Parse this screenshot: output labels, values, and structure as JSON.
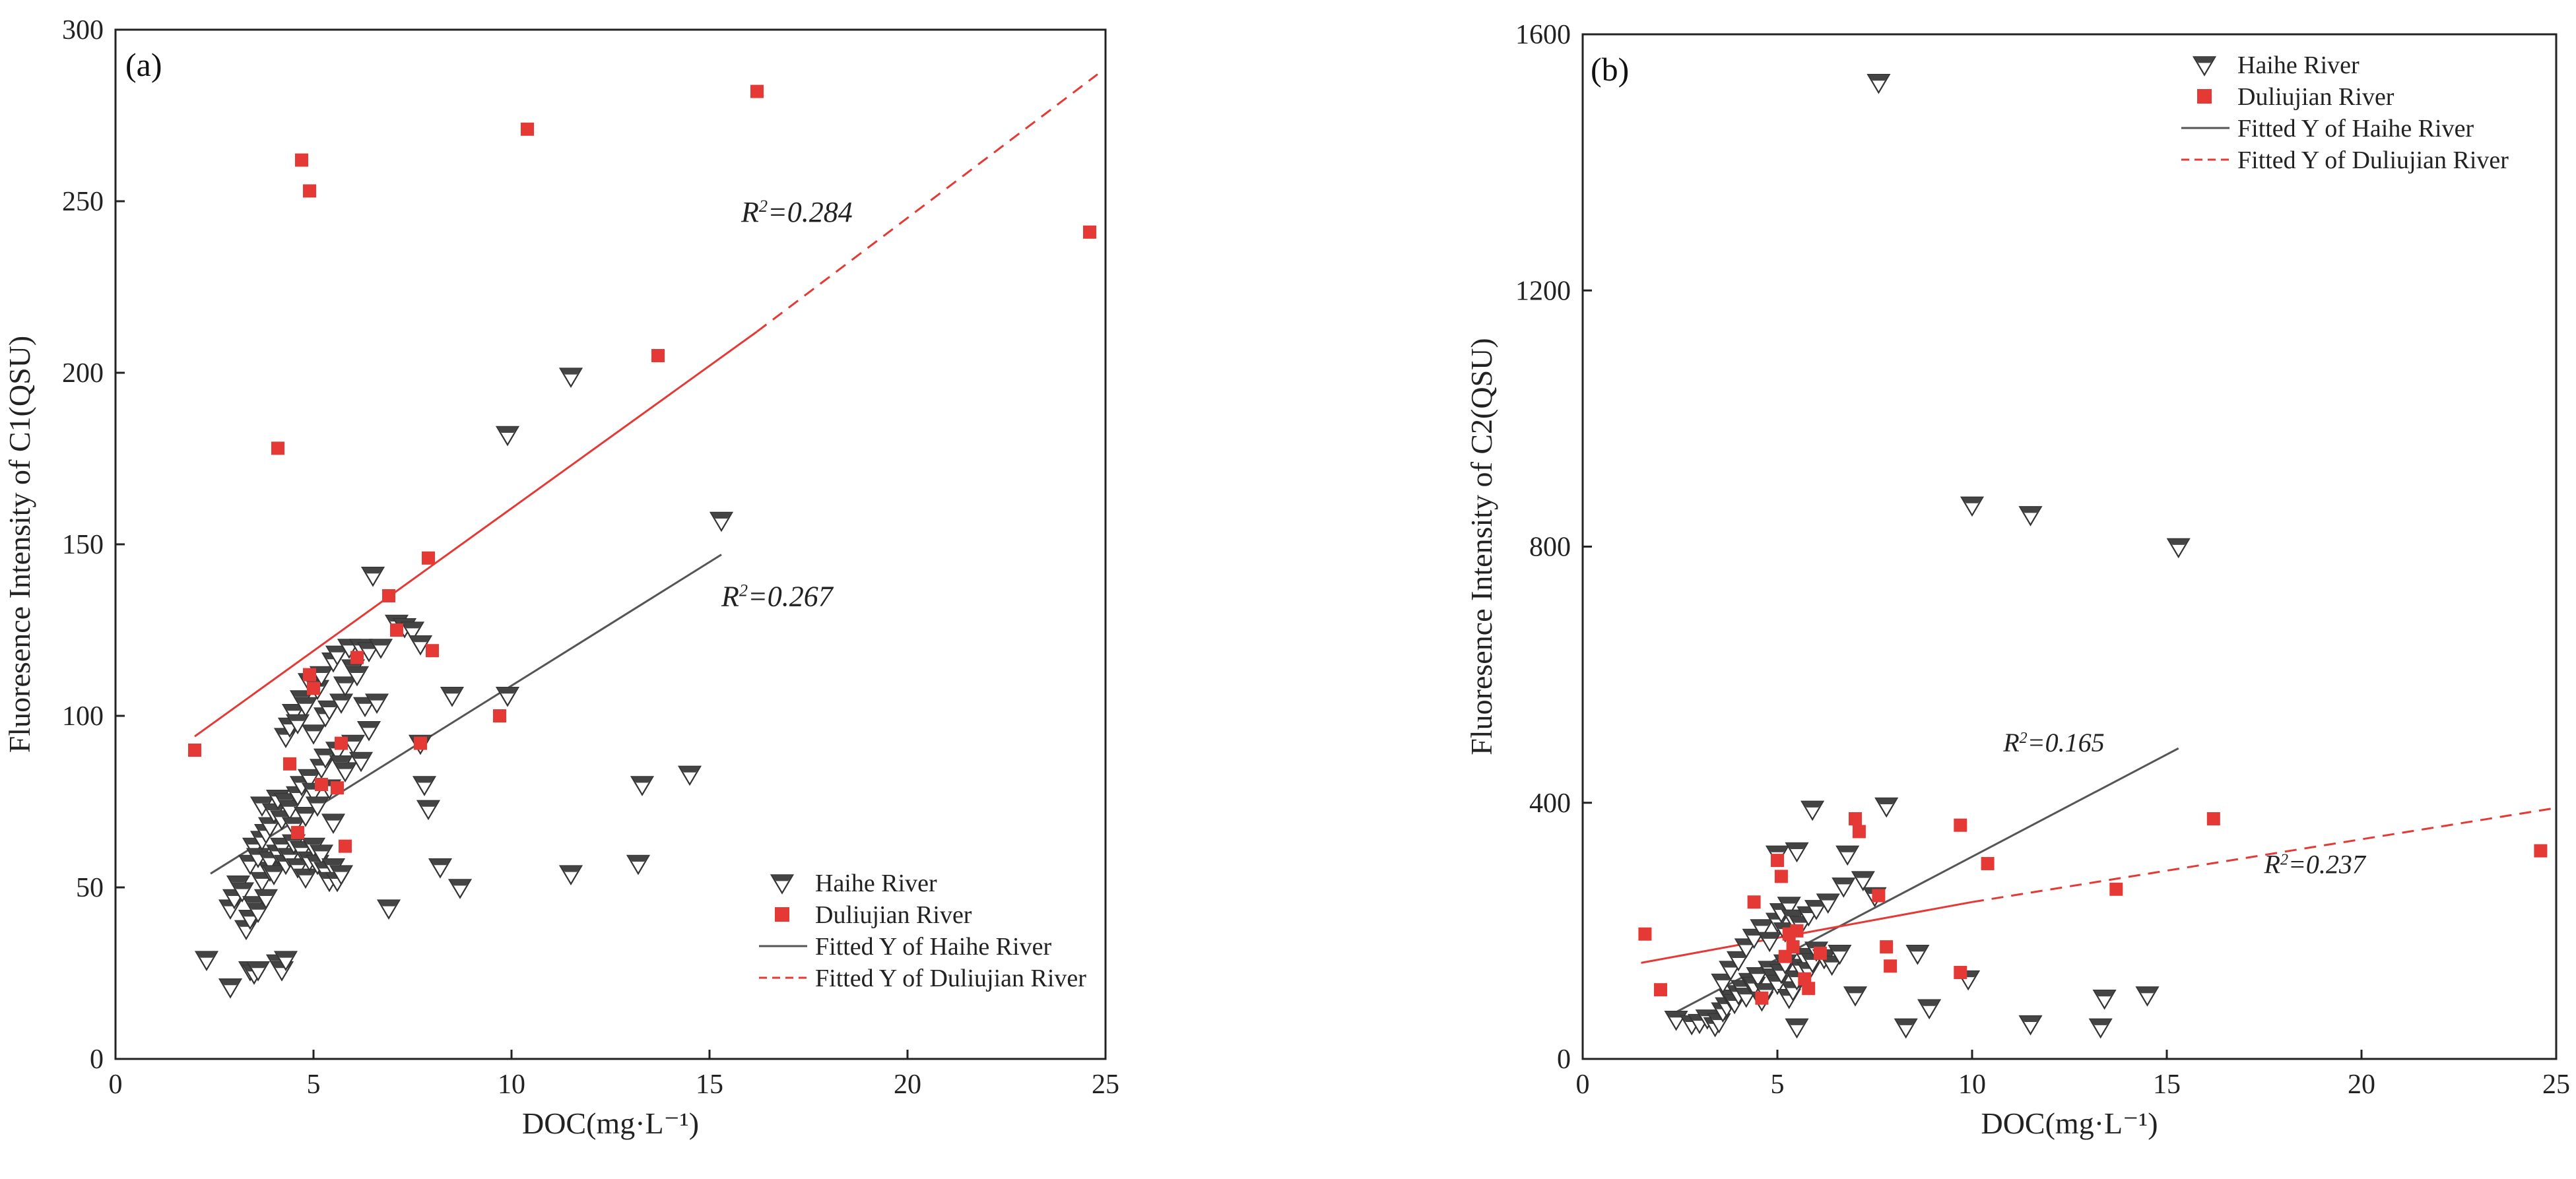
{
  "chart_data": [
    {
      "type": "scatter",
      "panel_label": "(a)",
      "xlabel": "DOC(mg·L⁻¹)",
      "ylabel": "Fluoresence Intensity of C1(QSU)",
      "xlim": [
        0,
        25
      ],
      "ylim": [
        0,
        300
      ],
      "xticks": [
        0,
        5,
        10,
        15,
        20,
        25
      ],
      "yticks": [
        0,
        50,
        100,
        150,
        200,
        250,
        300
      ],
      "grid": false,
      "legend_position": "bottom-right",
      "legend": {
        "haihe": "Haihe River",
        "duliujian": "Duliujian River",
        "fit_haihe": "Fitted Y of Haihe River",
        "fit_duliujian": "Fitted Y of Duliujian River"
      },
      "series": [
        {
          "name": "Haihe River",
          "marker": "triangle-down",
          "color": "#555555",
          "points": [
            [
              2.3,
              29
            ],
            [
              2.9,
              21
            ],
            [
              3.4,
              26
            ],
            [
              3.5,
              25
            ],
            [
              3.6,
              26
            ],
            [
              4.1,
              28
            ],
            [
              4.2,
              26
            ],
            [
              4.3,
              29
            ],
            [
              2.9,
              44
            ],
            [
              3.0,
              47
            ],
            [
              3.1,
              51
            ],
            [
              3.2,
              49
            ],
            [
              3.3,
              38
            ],
            [
              3.4,
              41
            ],
            [
              3.5,
              45
            ],
            [
              3.6,
              43
            ],
            [
              3.7,
              52
            ],
            [
              3.8,
              47
            ],
            [
              3.9,
              55
            ],
            [
              3.4,
              57
            ],
            [
              3.5,
              62
            ],
            [
              3.6,
              59
            ],
            [
              3.7,
              64
            ],
            [
              3.8,
              66
            ],
            [
              3.9,
              58
            ],
            [
              4.0,
              54
            ],
            [
              4.1,
              60
            ],
            [
              4.2,
              62
            ],
            [
              4.3,
              57
            ],
            [
              4.4,
              59
            ],
            [
              4.5,
              63
            ],
            [
              4.6,
              56
            ],
            [
              4.7,
              61
            ],
            [
              4.8,
              53
            ],
            [
              4.9,
              58
            ],
            [
              5.0,
              62
            ],
            [
              5.1,
              57
            ],
            [
              5.2,
              60
            ],
            [
              5.3,
              55
            ],
            [
              5.4,
              52
            ],
            [
              5.5,
              56
            ],
            [
              5.6,
              52
            ],
            [
              5.7,
              54
            ],
            [
              3.7,
              74
            ],
            [
              3.9,
              68
            ],
            [
              4.0,
              72
            ],
            [
              4.1,
              76
            ],
            [
              4.2,
              70
            ],
            [
              4.3,
              75
            ],
            [
              4.4,
              73
            ],
            [
              4.5,
              68
            ],
            [
              4.6,
              77
            ],
            [
              4.7,
              80
            ],
            [
              4.8,
              71
            ],
            [
              4.9,
              82
            ],
            [
              5.0,
              78
            ],
            [
              5.1,
              74
            ],
            [
              5.2,
              85
            ],
            [
              5.3,
              88
            ],
            [
              5.4,
              79
            ],
            [
              5.5,
              69
            ],
            [
              5.6,
              90
            ],
            [
              5.7,
              86
            ],
            [
              5.8,
              84
            ],
            [
              6.0,
              92
            ],
            [
              6.2,
              87
            ],
            [
              6.4,
              96
            ],
            [
              4.3,
              94
            ],
            [
              4.4,
              97
            ],
            [
              4.5,
              101
            ],
            [
              4.6,
              98
            ],
            [
              4.7,
              105
            ],
            [
              4.8,
              103
            ],
            [
              4.9,
              110
            ],
            [
              5.0,
              95
            ],
            [
              5.1,
              108
            ],
            [
              5.2,
              112
            ],
            [
              5.3,
              100
            ],
            [
              5.4,
              102
            ],
            [
              5.5,
              116
            ],
            [
              5.6,
              118
            ],
            [
              5.7,
              104
            ],
            [
              5.8,
              109
            ],
            [
              5.9,
              120
            ],
            [
              6.0,
              114
            ],
            [
              6.1,
              112
            ],
            [
              6.2,
              120
            ],
            [
              6.3,
              103
            ],
            [
              6.4,
              119
            ],
            [
              6.6,
              104
            ],
            [
              6.5,
              141
            ],
            [
              6.7,
              120
            ],
            [
              7.1,
              127
            ],
            [
              7.3,
              126
            ],
            [
              7.5,
              125
            ],
            [
              7.7,
              121
            ],
            [
              7.7,
              92
            ],
            [
              7.8,
              80
            ],
            [
              7.9,
              73
            ],
            [
              6.9,
              44
            ],
            [
              8.2,
              56
            ],
            [
              8.5,
              106
            ],
            [
              8.7,
              50
            ],
            [
              9.9,
              106
            ],
            [
              9.9,
              182
            ],
            [
              11.5,
              54
            ],
            [
              11.5,
              199
            ],
            [
              13.2,
              57
            ],
            [
              13.3,
              80
            ],
            [
              14.5,
              83
            ],
            [
              15.3,
              157
            ]
          ]
        },
        {
          "name": "Duliujian River",
          "marker": "square",
          "color": "#e53935",
          "points": [
            [
              2.0,
              90
            ],
            [
              4.1,
              178
            ],
            [
              4.4,
              86
            ],
            [
              4.6,
              66
            ],
            [
              4.7,
              262
            ],
            [
              4.9,
              253
            ],
            [
              4.9,
              112
            ],
            [
              5.0,
              108
            ],
            [
              5.2,
              80
            ],
            [
              5.6,
              79
            ],
            [
              5.7,
              92
            ],
            [
              5.8,
              62
            ],
            [
              6.1,
              117
            ],
            [
              6.9,
              135
            ],
            [
              7.1,
              125
            ],
            [
              7.7,
              92
            ],
            [
              7.9,
              146
            ],
            [
              8.0,
              119
            ],
            [
              9.7,
              100
            ],
            [
              10.4,
              271
            ],
            [
              13.7,
              205
            ],
            [
              16.2,
              282
            ],
            [
              24.6,
              241
            ]
          ]
        },
        {
          "name": "Fitted Y of Haihe River",
          "type": "line",
          "style": "solid",
          "color": "#555555",
          "x": [
            2.4,
            15.3
          ],
          "y": [
            54,
            147
          ]
        },
        {
          "name": "Fitted Y of Duliujian River",
          "type": "line",
          "style": "solid-then-dashed",
          "color": "#e53935",
          "solid_x": [
            2.0,
            16.2
          ],
          "solid_y": [
            94,
            212
          ],
          "x": [
            2.0,
            24.8
          ],
          "y": [
            94,
            287
          ]
        }
      ],
      "annotations": [
        {
          "r2_label": "R",
          "sup": "2",
          "value": "=0.284",
          "x": 15.8,
          "y": 244
        },
        {
          "r2_label": "R",
          "sup": "2",
          "value": "=0.267",
          "x": 15.3,
          "y": 132
        }
      ]
    },
    {
      "type": "scatter",
      "panel_label": "(b)",
      "xlabel": "DOC(mg·L⁻¹)",
      "ylabel": "Fluoresence Intensity of C2(QSU)",
      "xlim": [
        0,
        25
      ],
      "ylim": [
        0,
        1600
      ],
      "xticks": [
        0,
        5,
        10,
        15,
        20,
        25
      ],
      "yticks": [
        0,
        400,
        800,
        1200,
        1600
      ],
      "grid": false,
      "legend_position": "top-right",
      "legend": {
        "haihe": "Haihe River",
        "duliujian": "Duliujian River",
        "fit_haihe": "Fitted Y of Haihe River",
        "fit_duliujian": "Fitted Y of Duliujian River"
      },
      "series": [
        {
          "name": "Haihe River",
          "marker": "triangle-down",
          "color": "#555555",
          "points": [
            [
              2.4,
              62
            ],
            [
              2.8,
              55
            ],
            [
              3.0,
              57
            ],
            [
              3.2,
              64
            ],
            [
              3.4,
              52
            ],
            [
              3.5,
              58
            ],
            [
              3.6,
              75
            ],
            [
              3.7,
              83
            ],
            [
              3.8,
              95
            ],
            [
              3.9,
              88
            ],
            [
              4.0,
              102
            ],
            [
              4.1,
              110
            ],
            [
              4.2,
              98
            ],
            [
              4.3,
              121
            ],
            [
              4.4,
              115
            ],
            [
              4.5,
              130
            ],
            [
              4.6,
              92
            ],
            [
              4.7,
              105
            ],
            [
              4.8,
              140
            ],
            [
              4.9,
              128
            ],
            [
              5.0,
              118
            ],
            [
              5.1,
              135
            ],
            [
              5.2,
              150
            ],
            [
              5.3,
              96
            ],
            [
              5.4,
              108
            ],
            [
              5.5,
              125
            ],
            [
              5.6,
              143
            ],
            [
              5.7,
              160
            ],
            [
              5.8,
              138
            ],
            [
              5.9,
              152
            ],
            [
              6.0,
              170
            ],
            [
              6.2,
              158
            ],
            [
              6.4,
              148
            ],
            [
              6.6,
              165
            ],
            [
              3.6,
              120
            ],
            [
              3.8,
              140
            ],
            [
              4.0,
              155
            ],
            [
              4.2,
              175
            ],
            [
              4.4,
              190
            ],
            [
              4.6,
              205
            ],
            [
              4.8,
              185
            ],
            [
              5.0,
              215
            ],
            [
              5.1,
              230
            ],
            [
              5.2,
              200
            ],
            [
              5.3,
              240
            ],
            [
              5.4,
              220
            ],
            [
              5.6,
              210
            ],
            [
              5.8,
              225
            ],
            [
              6.0,
              235
            ],
            [
              6.3,
              245
            ],
            [
              6.7,
              270
            ],
            [
              7.2,
              280
            ],
            [
              7.5,
              255
            ],
            [
              5.0,
              320
            ],
            [
              5.5,
              325
            ],
            [
              5.9,
              390
            ],
            [
              6.8,
              320
            ],
            [
              7.8,
              395
            ],
            [
              7.6,
              1525
            ],
            [
              8.3,
              50
            ],
            [
              8.6,
              165
            ],
            [
              8.9,
              80
            ],
            [
              7.0,
              100
            ],
            [
              9.9,
              125
            ],
            [
              10.0,
              865
            ],
            [
              11.5,
              850
            ],
            [
              11.5,
              55
            ],
            [
              13.3,
              50
            ],
            [
              13.4,
              95
            ],
            [
              14.5,
              100
            ],
            [
              15.3,
              800
            ],
            [
              5.5,
              50
            ]
          ]
        },
        {
          "name": "Duliujian River",
          "marker": "square",
          "color": "#e53935",
          "points": [
            [
              1.6,
              195
            ],
            [
              2.0,
              108
            ],
            [
              4.4,
              245
            ],
            [
              4.6,
              95
            ],
            [
              5.0,
              310
            ],
            [
              5.1,
              285
            ],
            [
              5.2,
              160
            ],
            [
              5.3,
              195
            ],
            [
              5.4,
              175
            ],
            [
              5.5,
              200
            ],
            [
              5.7,
              125
            ],
            [
              5.8,
              110
            ],
            [
              6.1,
              165
            ],
            [
              7.0,
              375
            ],
            [
              7.1,
              355
            ],
            [
              7.6,
              255
            ],
            [
              7.8,
              175
            ],
            [
              7.9,
              145
            ],
            [
              9.7,
              365
            ],
            [
              9.7,
              135
            ],
            [
              10.4,
              305
            ],
            [
              13.7,
              265
            ],
            [
              16.2,
              375
            ],
            [
              24.6,
              325
            ]
          ]
        },
        {
          "name": "Fitted Y of Haihe River",
          "type": "line",
          "style": "solid",
          "color": "#555555",
          "x": [
            2.3,
            15.3
          ],
          "y": [
            70,
            485
          ]
        },
        {
          "name": "Fitted Y of Duliujian River",
          "type": "line",
          "style": "solid-then-dashed",
          "color": "#e53935",
          "solid_x": [
            1.5,
            10.0
          ],
          "solid_y": [
            150,
            245
          ],
          "x": [
            1.5,
            25.0
          ],
          "y": [
            150,
            392
          ]
        }
      ],
      "annotations": [
        {
          "r2_label": "R",
          "sup": "2",
          "value": "=0.165",
          "x": 10.8,
          "y": 480
        },
        {
          "r2_label": "R",
          "sup": "2",
          "value": "=0.237",
          "x": 17.5,
          "y": 290
        }
      ]
    }
  ]
}
